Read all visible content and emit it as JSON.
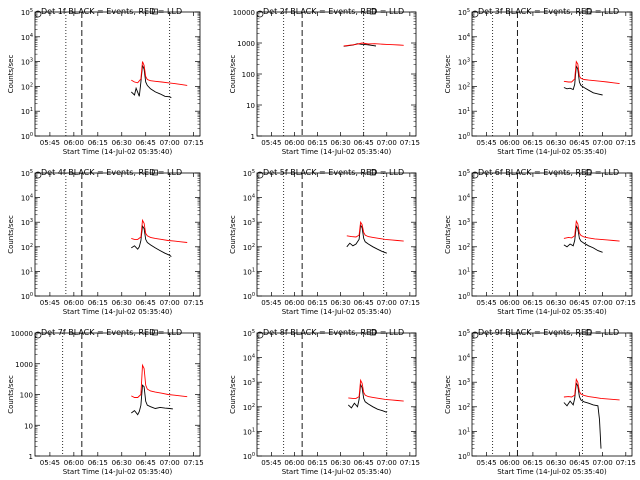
{
  "figure": {
    "background": "#ffffff",
    "events_color": "#000000",
    "lld_color": "#ff0000"
  },
  "chart_data": [
    {
      "type": "line",
      "title": "Det 1f BLACK = Events, RED = LLD",
      "xlabel": "Start Time (14-Jul-02 05:35:40)",
      "ylabel": "Counts/sec",
      "x_ticks": [
        "05:45",
        "06:00",
        "06:15",
        "06:30",
        "06:45",
        "07:00",
        "07:15"
      ],
      "y_scale": "log",
      "ylim": [
        1,
        100000
      ],
      "y_tick_style": "power",
      "y_ticks": [
        "10^0",
        "10^1",
        "10^2",
        "10^3",
        "10^4",
        "10^5"
      ],
      "markers": {
        "dotted": [
          "05:55",
          "07:00"
        ],
        "dashed": [
          "06:05"
        ]
      },
      "series": [
        {
          "name": "Events",
          "color": "#000000",
          "x": [
            "06:36",
            "06:38",
            "06:39",
            "06:41",
            "06:42",
            "06:43",
            "06:44",
            "06:45",
            "06:46",
            "06:48",
            "06:51",
            "06:54",
            "06:57",
            "07:00",
            "07:01"
          ],
          "values": [
            60,
            45,
            85,
            40,
            150,
            700,
            500,
            150,
            110,
            80,
            60,
            50,
            40,
            38,
            35
          ]
        },
        {
          "name": "LLD",
          "color": "#ff0000",
          "x": [
            "06:36",
            "06:38",
            "06:40",
            "06:42",
            "06:43",
            "06:44",
            "06:45",
            "06:46",
            "06:48",
            "06:51",
            "06:55",
            "06:59",
            "07:03",
            "07:07",
            "07:11"
          ],
          "values": [
            180,
            150,
            140,
            200,
            1000,
            700,
            250,
            190,
            170,
            160,
            150,
            140,
            130,
            120,
            110
          ]
        }
      ]
    },
    {
      "type": "line",
      "title": "Det 2f BLACK = Events, RED = LLD",
      "xlabel": "Start Time (14-Jul-02 05:35:40)",
      "ylabel": "Counts/sec",
      "x_ticks": [
        "05:45",
        "06:00",
        "06:15",
        "06:30",
        "06:45",
        "07:00",
        "07:15"
      ],
      "y_scale": "log",
      "ylim": [
        1,
        10000
      ],
      "y_tick_style": "plain",
      "y_ticks": [
        "1",
        "10",
        "100",
        "1000",
        "10000"
      ],
      "markers": {
        "dotted": [
          "05:53",
          "06:45"
        ],
        "dashed": [
          "06:05"
        ]
      },
      "series": [
        {
          "name": "Events",
          "color": "#000000",
          "x": [
            "06:32",
            "06:35",
            "06:38",
            "06:41",
            "06:44",
            "06:47",
            "06:50",
            "06:53"
          ],
          "values": [
            780,
            820,
            860,
            950,
            900,
            880,
            840,
            800
          ]
        },
        {
          "name": "LLD",
          "color": "#ff0000",
          "x": [
            "06:32",
            "06:36",
            "06:40",
            "06:44",
            "06:48",
            "06:52",
            "06:56",
            "07:00",
            "07:04",
            "07:08",
            "07:11"
          ],
          "values": [
            800,
            850,
            900,
            1000,
            930,
            950,
            920,
            900,
            880,
            860,
            840
          ]
        }
      ]
    },
    {
      "type": "line",
      "title": "Det 3f BLACK = Events, RED = LLD",
      "xlabel": "Start Time (14-Jul-02 05:35:40)",
      "ylabel": "Counts/sec",
      "x_ticks": [
        "05:45",
        "06:00",
        "06:15",
        "06:30",
        "06:45",
        "07:00",
        "07:15"
      ],
      "y_scale": "log",
      "ylim": [
        1,
        100000
      ],
      "y_tick_style": "power",
      "y_ticks": [
        "10^0",
        "10^1",
        "10^2",
        "10^3",
        "10^4",
        "10^5"
      ],
      "markers": {
        "dotted": [
          "05:49",
          "06:47"
        ],
        "dashed": [
          "06:05"
        ]
      },
      "series": [
        {
          "name": "Events",
          "color": "#000000",
          "x": [
            "06:35",
            "06:37",
            "06:39",
            "06:41",
            "06:42",
            "06:43",
            "06:44",
            "06:45",
            "06:46",
            "06:48",
            "06:51",
            "06:54",
            "06:57",
            "07:00"
          ],
          "values": [
            90,
            80,
            85,
            75,
            120,
            650,
            500,
            150,
            110,
            90,
            70,
            55,
            50,
            45
          ]
        },
        {
          "name": "LLD",
          "color": "#ff0000",
          "x": [
            "06:35",
            "06:38",
            "06:40",
            "06:42",
            "06:43",
            "06:44",
            "06:45",
            "06:46",
            "06:48",
            "06:51",
            "06:55",
            "06:59",
            "07:03",
            "07:07",
            "07:11"
          ],
          "values": [
            160,
            150,
            150,
            200,
            1000,
            800,
            260,
            210,
            190,
            180,
            170,
            160,
            150,
            140,
            130
          ]
        }
      ]
    },
    {
      "type": "line",
      "title": "Det 4f BLACK = Events, RED = LLD",
      "xlabel": "Start Time (14-Jul-02 05:35:40)",
      "ylabel": "Counts/sec",
      "x_ticks": [
        "05:45",
        "06:00",
        "06:15",
        "06:30",
        "06:45",
        "07:00",
        "07:15"
      ],
      "y_scale": "log",
      "ylim": [
        1,
        100000
      ],
      "y_tick_style": "power",
      "y_ticks": [
        "10^0",
        "10^1",
        "10^2",
        "10^3",
        "10^4",
        "10^5"
      ],
      "markers": {
        "dotted": [
          "05:55",
          "07:00"
        ],
        "dashed": [
          "06:05"
        ]
      },
      "series": [
        {
          "name": "Events",
          "color": "#000000",
          "x": [
            "06:36",
            "06:38",
            "06:40",
            "06:41",
            "06:42",
            "06:43",
            "06:44",
            "06:45",
            "06:46",
            "06:48",
            "06:51",
            "06:54",
            "06:57",
            "07:00",
            "07:01"
          ],
          "values": [
            90,
            110,
            80,
            100,
            180,
            700,
            550,
            200,
            150,
            120,
            90,
            70,
            55,
            45,
            40
          ]
        },
        {
          "name": "LLD",
          "color": "#ff0000",
          "x": [
            "06:36",
            "06:38",
            "06:40",
            "06:42",
            "06:43",
            "06:44",
            "06:45",
            "06:46",
            "06:48",
            "06:51",
            "06:55",
            "06:59",
            "07:03",
            "07:07",
            "07:11"
          ],
          "values": [
            220,
            200,
            200,
            250,
            1200,
            900,
            350,
            280,
            240,
            220,
            200,
            180,
            170,
            160,
            150
          ]
        }
      ]
    },
    {
      "type": "line",
      "title": "Det 5f BLACK = Events, RED = LLD",
      "xlabel": "Start Time (14-Jul-02 05:35:40)",
      "ylabel": "Counts/sec",
      "x_ticks": [
        "05:45",
        "06:00",
        "06:15",
        "06:30",
        "06:45",
        "07:00",
        "07:15"
      ],
      "y_scale": "log",
      "ylim": [
        1,
        100000
      ],
      "y_tick_style": "power",
      "y_ticks": [
        "10^0",
        "10^1",
        "10^2",
        "10^3",
        "10^4",
        "10^5"
      ],
      "markers": {
        "dotted": [
          "05:53",
          "06:58"
        ],
        "dashed": [
          "06:05"
        ]
      },
      "series": [
        {
          "name": "Events",
          "color": "#000000",
          "x": [
            "06:34",
            "06:36",
            "06:38",
            "06:40",
            "06:42",
            "06:43",
            "06:44",
            "06:45",
            "06:46",
            "06:48",
            "06:51",
            "06:54",
            "06:57",
            "07:00"
          ],
          "values": [
            100,
            140,
            110,
            130,
            200,
            750,
            600,
            220,
            160,
            130,
            100,
            80,
            65,
            55
          ]
        },
        {
          "name": "LLD",
          "color": "#ff0000",
          "x": [
            "06:34",
            "06:37",
            "06:40",
            "06:42",
            "06:43",
            "06:44",
            "06:45",
            "06:46",
            "06:48",
            "06:51",
            "06:55",
            "06:59",
            "07:03",
            "07:07",
            "07:11"
          ],
          "values": [
            280,
            260,
            250,
            300,
            1000,
            800,
            380,
            300,
            260,
            240,
            220,
            200,
            190,
            180,
            170
          ]
        }
      ]
    },
    {
      "type": "line",
      "title": "Det 6f BLACK = Events, RED = LLD",
      "xlabel": "Start Time (14-Jul-02 05:35:40)",
      "ylabel": "Counts/sec",
      "x_ticks": [
        "05:45",
        "06:00",
        "06:15",
        "06:30",
        "06:45",
        "07:00",
        "07:15"
      ],
      "y_scale": "log",
      "ylim": [
        1,
        100000
      ],
      "y_tick_style": "power",
      "y_ticks": [
        "10^0",
        "10^1",
        "10^2",
        "10^3",
        "10^4",
        "10^5"
      ],
      "markers": {
        "dotted": [
          "05:49",
          "06:49"
        ],
        "dashed": [
          "06:05"
        ]
      },
      "series": [
        {
          "name": "Events",
          "color": "#000000",
          "x": [
            "06:35",
            "06:37",
            "06:39",
            "06:41",
            "06:42",
            "06:43",
            "06:44",
            "06:45",
            "06:46",
            "06:48",
            "06:51",
            "06:54",
            "06:57",
            "07:00"
          ],
          "values": [
            120,
            100,
            130,
            110,
            180,
            700,
            550,
            220,
            170,
            140,
            110,
            90,
            70,
            60
          ]
        },
        {
          "name": "LLD",
          "color": "#ff0000",
          "x": [
            "06:35",
            "06:38",
            "06:40",
            "06:42",
            "06:43",
            "06:44",
            "06:45",
            "06:46",
            "06:48",
            "06:51",
            "06:55",
            "06:59",
            "07:03",
            "07:07",
            "07:11"
          ],
          "values": [
            220,
            240,
            230,
            280,
            1100,
            850,
            360,
            290,
            250,
            230,
            210,
            200,
            190,
            180,
            170
          ]
        }
      ]
    },
    {
      "type": "line",
      "title": "Det 7f BLACK = Events, RED = LLD",
      "xlabel": "Start Time (14-Jul-02 05:35:40)",
      "ylabel": "Counts/sec",
      "x_ticks": [
        "05:45",
        "06:00",
        "06:15",
        "06:30",
        "06:45",
        "07:00",
        "07:15"
      ],
      "y_scale": "log",
      "ylim": [
        1,
        10000
      ],
      "y_tick_style": "plain",
      "y_ticks": [
        "1",
        "10",
        "100",
        "1000",
        "10000"
      ],
      "markers": {
        "dotted": [
          "05:53",
          "07:00"
        ],
        "dashed": [
          "06:05"
        ]
      },
      "series": [
        {
          "name": "Events",
          "color": "#000000",
          "x": [
            "06:36",
            "06:38",
            "06:40",
            "06:41",
            "06:42",
            "06:43",
            "06:44",
            "06:45",
            "06:46",
            "06:48",
            "06:51",
            "06:54",
            "06:57",
            "07:00",
            "07:02"
          ],
          "values": [
            25,
            30,
            22,
            28,
            45,
            200,
            180,
            60,
            45,
            40,
            35,
            38,
            36,
            35,
            34
          ]
        },
        {
          "name": "LLD",
          "color": "#ff0000",
          "x": [
            "06:36",
            "06:38",
            "06:40",
            "06:42",
            "06:43",
            "06:44",
            "06:45",
            "06:46",
            "06:48",
            "06:51",
            "06:55",
            "06:59",
            "07:03",
            "07:07",
            "07:11"
          ],
          "values": [
            90,
            80,
            80,
            100,
            900,
            700,
            200,
            150,
            130,
            120,
            110,
            100,
            95,
            90,
            85
          ]
        }
      ]
    },
    {
      "type": "line",
      "title": "Det 8f BLACK = Events, RED = LLD",
      "xlabel": "Start Time (14-Jul-02 05:35:40)",
      "ylabel": "Counts/sec",
      "x_ticks": [
        "05:45",
        "06:00",
        "06:15",
        "06:30",
        "06:45",
        "07:00",
        "07:15"
      ],
      "y_scale": "log",
      "ylim": [
        1,
        100000
      ],
      "y_tick_style": "power",
      "y_ticks": [
        "10^0",
        "10^1",
        "10^2",
        "10^3",
        "10^4",
        "10^5"
      ],
      "markers": {
        "dotted": [
          "05:53",
          "07:00"
        ],
        "dashed": [
          "06:05"
        ]
      },
      "series": [
        {
          "name": "Events",
          "color": "#000000",
          "x": [
            "06:35",
            "06:37",
            "06:39",
            "06:41",
            "06:42",
            "06:43",
            "06:44",
            "06:45",
            "06:46",
            "06:48",
            "06:51",
            "06:54",
            "06:57",
            "07:00"
          ],
          "values": [
            120,
            90,
            140,
            100,
            200,
            800,
            600,
            220,
            160,
            130,
            100,
            80,
            70,
            60
          ]
        },
        {
          "name": "LLD",
          "color": "#ff0000",
          "x": [
            "06:35",
            "06:38",
            "06:40",
            "06:42",
            "06:43",
            "06:44",
            "06:45",
            "06:46",
            "06:48",
            "06:51",
            "06:55",
            "06:59",
            "07:03",
            "07:07",
            "07:11"
          ],
          "values": [
            230,
            220,
            220,
            260,
            1200,
            900,
            380,
            300,
            260,
            240,
            220,
            200,
            190,
            180,
            170
          ]
        }
      ]
    },
    {
      "type": "line",
      "title": "Det 9f BLACK = Events, RED = LLD",
      "xlabel": "Start Time (14-Jul-02 05:35:40)",
      "ylabel": "Counts/sec",
      "x_ticks": [
        "05:45",
        "06:00",
        "06:15",
        "06:30",
        "06:45",
        "07:00",
        "07:15"
      ],
      "y_scale": "log",
      "ylim": [
        1,
        100000
      ],
      "y_tick_style": "power",
      "y_ticks": [
        "10^0",
        "10^1",
        "10^2",
        "10^3",
        "10^4",
        "10^5"
      ],
      "markers": {
        "dotted": [
          "05:49",
          "06:47"
        ],
        "dashed": [
          "06:05"
        ]
      },
      "series": [
        {
          "name": "Events",
          "color": "#000000",
          "x": [
            "06:35",
            "06:37",
            "06:39",
            "06:41",
            "06:42",
            "06:43",
            "06:44",
            "06:45",
            "06:46",
            "06:48",
            "06:51",
            "06:54",
            "06:57",
            "06:58",
            "06:59"
          ],
          "values": [
            150,
            110,
            170,
            120,
            220,
            900,
            700,
            260,
            190,
            160,
            140,
            120,
            110,
            30,
            2
          ]
        },
        {
          "name": "LLD",
          "color": "#ff0000",
          "x": [
            "06:35",
            "06:38",
            "06:40",
            "06:42",
            "06:43",
            "06:44",
            "06:45",
            "06:46",
            "06:48",
            "06:51",
            "06:55",
            "06:59",
            "07:03",
            "07:07",
            "07:11"
          ],
          "values": [
            250,
            260,
            250,
            300,
            1300,
            1000,
            420,
            330,
            290,
            260,
            240,
            220,
            210,
            200,
            190
          ]
        }
      ]
    }
  ]
}
